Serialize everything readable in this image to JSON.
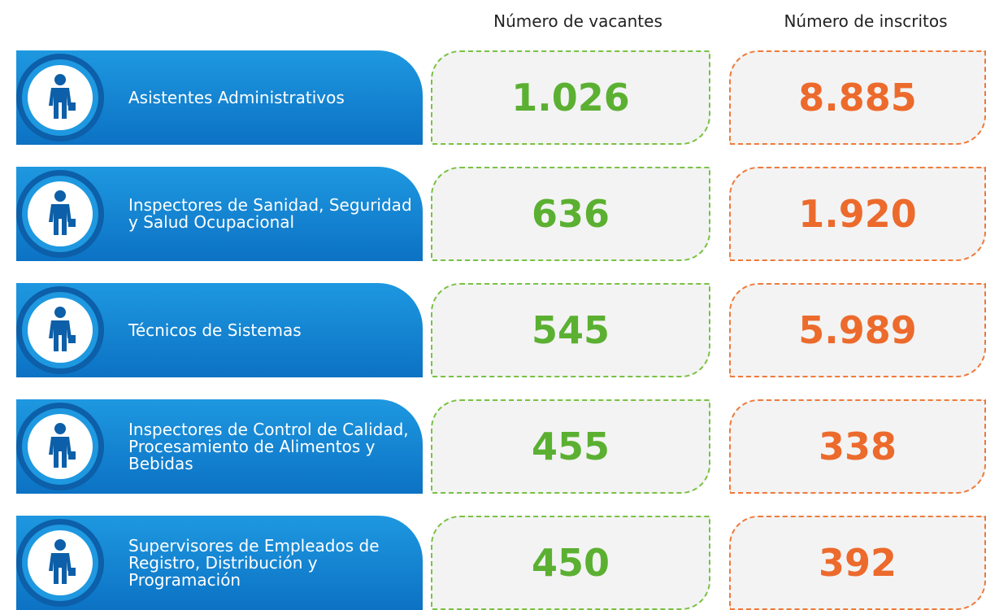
{
  "header": {
    "vacancies": "Número de vacantes",
    "applicants": "Número de inscritos"
  },
  "table": {
    "rows": [
      [
        "Asistentes Administrativos",
        "1.026",
        "8.885"
      ],
      [
        "Inspectores de Sanidad, Seguridad y Salud Ocupacional",
        "636",
        "1.920"
      ],
      [
        "Técnicos de Sistemas",
        "545",
        "5.989"
      ],
      [
        "Inspectores de Control de Calidad, Procesamiento de Alimentos y Bebidas",
        "455",
        "338"
      ],
      [
        "Supervisores de Empleados de Registro, Distribución y Programación",
        "450",
        "392"
      ]
    ]
  }
}
